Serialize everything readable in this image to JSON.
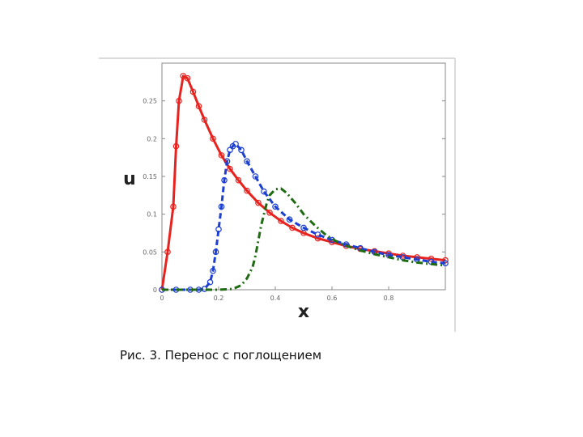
{
  "caption": "Рис. 3. Перенос с поглощением",
  "chart_data": {
    "type": "line",
    "title": "",
    "xlabel": "x",
    "ylabel": "u",
    "xlim": [
      0,
      1
    ],
    "ylim": [
      0,
      0.3
    ],
    "xticks": [
      "0",
      "0.2",
      "0.4",
      "0.6",
      "0.8"
    ],
    "yticks": [
      "0",
      "0.05",
      "0.1",
      "0.15",
      "0.2",
      "0.25"
    ],
    "grid": false,
    "series": [
      {
        "color": "#e8231f",
        "style": "solid",
        "marker": "circle",
        "x": [
          0,
          0.02,
          0.04,
          0.05,
          0.06,
          0.075,
          0.09,
          0.11,
          0.13,
          0.15,
          0.18,
          0.21,
          0.24,
          0.27,
          0.3,
          0.34,
          0.38,
          0.42,
          0.46,
          0.5,
          0.55,
          0.6,
          0.65,
          0.7,
          0.75,
          0.8,
          0.85,
          0.9,
          0.95,
          1.0
        ],
        "y": [
          0,
          0.05,
          0.11,
          0.19,
          0.25,
          0.283,
          0.28,
          0.262,
          0.243,
          0.225,
          0.2,
          0.178,
          0.16,
          0.145,
          0.131,
          0.115,
          0.102,
          0.091,
          0.082,
          0.075,
          0.068,
          0.063,
          0.058,
          0.054,
          0.051,
          0.048,
          0.045,
          0.043,
          0.041,
          0.039
        ]
      },
      {
        "color": "#1c3fd1",
        "style": "dashed",
        "marker": "circle",
        "x": [
          0,
          0.05,
          0.1,
          0.13,
          0.15,
          0.17,
          0.18,
          0.19,
          0.2,
          0.21,
          0.22,
          0.23,
          0.24,
          0.25,
          0.26,
          0.28,
          0.3,
          0.33,
          0.36,
          0.4,
          0.45,
          0.5,
          0.55,
          0.6,
          0.65,
          0.7,
          0.75,
          0.8,
          0.85,
          0.9,
          0.95,
          1.0
        ],
        "y": [
          0,
          0,
          0,
          0,
          0.001,
          0.01,
          0.025,
          0.05,
          0.08,
          0.11,
          0.145,
          0.17,
          0.185,
          0.19,
          0.193,
          0.185,
          0.17,
          0.15,
          0.13,
          0.11,
          0.093,
          0.082,
          0.073,
          0.066,
          0.06,
          0.055,
          0.05,
          0.046,
          0.043,
          0.04,
          0.037,
          0.035
        ]
      },
      {
        "color": "#1e6b12",
        "style": "dashdot",
        "marker": "none",
        "x": [
          0,
          0.1,
          0.2,
          0.25,
          0.28,
          0.3,
          0.32,
          0.33,
          0.34,
          0.35,
          0.36,
          0.37,
          0.38,
          0.4,
          0.42,
          0.44,
          0.47,
          0.5,
          0.54,
          0.58,
          0.62,
          0.66,
          0.7,
          0.75,
          0.8,
          0.85,
          0.9,
          0.95,
          1.0
        ],
        "y": [
          0,
          0,
          0,
          0.001,
          0.006,
          0.015,
          0.03,
          0.045,
          0.065,
          0.085,
          0.1,
          0.115,
          0.125,
          0.133,
          0.134,
          0.128,
          0.115,
          0.1,
          0.085,
          0.072,
          0.063,
          0.057,
          0.052,
          0.047,
          0.043,
          0.039,
          0.036,
          0.034,
          0.032
        ]
      }
    ]
  }
}
